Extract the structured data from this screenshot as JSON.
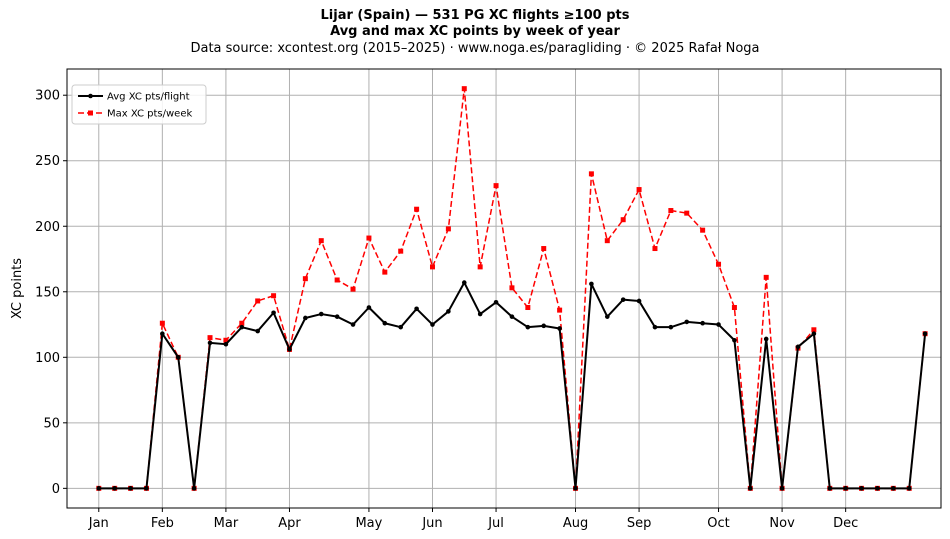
{
  "chart_data": {
    "type": "line",
    "title": "Lijar (Spain)  —  531 PG XC flights ≥100 pts",
    "subtitle": "Avg and max XC points by week of year",
    "source": "Data source: xcontest.org (2015–2025)  ·  www.noga.es/paragliding  ·  © 2025 Rafał Noga",
    "xlabel": "",
    "ylabel": "XC points",
    "ylim": [
      -15,
      320
    ],
    "xlim": [
      -2,
      53
    ],
    "yticks": [
      0,
      50,
      100,
      150,
      200,
      250,
      300
    ],
    "grid": true,
    "legend_position": "top-left",
    "x_tick_positions": [
      0,
      4,
      8,
      12,
      17,
      21,
      25,
      30,
      34,
      39,
      43,
      47
    ],
    "x_tick_labels": [
      "Jan",
      "Feb",
      "Mar",
      "Apr",
      "May",
      "Jun",
      "Jul",
      "Aug",
      "Sep",
      "Oct",
      "Nov",
      "Dec"
    ],
    "x": [
      0,
      1,
      2,
      3,
      4,
      5,
      6,
      7,
      8,
      9,
      10,
      11,
      12,
      13,
      14,
      15,
      16,
      17,
      18,
      19,
      20,
      21,
      22,
      23,
      24,
      25,
      26,
      27,
      28,
      29,
      30,
      31,
      32,
      33,
      34,
      35,
      36,
      37,
      38,
      39,
      40,
      41,
      42,
      43,
      44,
      45,
      46,
      47,
      48,
      49,
      50,
      51,
      52
    ],
    "series": [
      {
        "name": "Avg XC pts/flight",
        "color": "#000000",
        "style": "solid-circle",
        "values": [
          0,
          0,
          0,
          0,
          118,
          100,
          0,
          111,
          110,
          123,
          120,
          134,
          106,
          130,
          133,
          131,
          125,
          138,
          126,
          123,
          137,
          125,
          135,
          157,
          133,
          142,
          131,
          123,
          124,
          122,
          0,
          156,
          131,
          144,
          143,
          123,
          123,
          127,
          126,
          125,
          113,
          0,
          114,
          0,
          108,
          118,
          0,
          0,
          0,
          0,
          0,
          0,
          118
        ]
      },
      {
        "name": "Max XC pts/week",
        "color": "#ff0000",
        "style": "dashed-square",
        "values": [
          0,
          0,
          0,
          0,
          126,
          100,
          0,
          115,
          113,
          126,
          143,
          147,
          106,
          160,
          189,
          159,
          152,
          191,
          165,
          181,
          213,
          169,
          198,
          305,
          169,
          231,
          153,
          138,
          183,
          136,
          0,
          240,
          189,
          205,
          228,
          183,
          212,
          210,
          197,
          171,
          138,
          0,
          161,
          0,
          107,
          121,
          0,
          0,
          0,
          0,
          0,
          0,
          118
        ]
      }
    ]
  }
}
